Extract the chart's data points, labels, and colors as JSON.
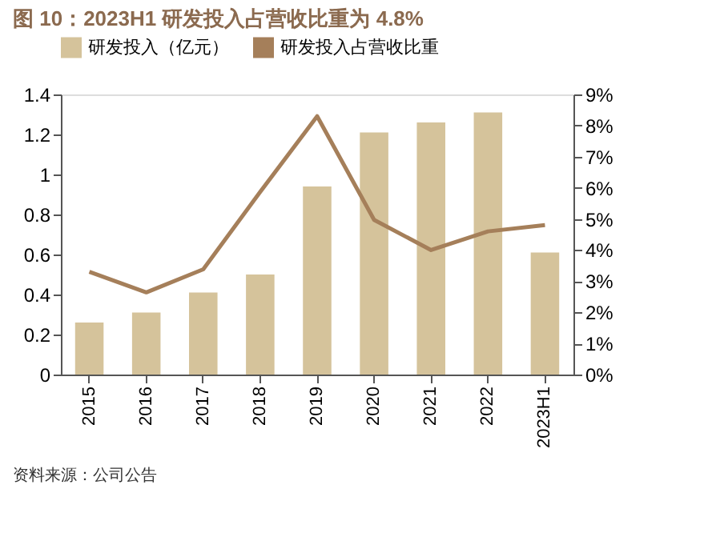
{
  "chart_data": {
    "type": "bar",
    "title": "图 10：2023H1 研发投入占营收比重为 4.8%",
    "categories": [
      "2015",
      "2016",
      "2017",
      "2018",
      "2019",
      "2020",
      "2021",
      "2022",
      "2023H1"
    ],
    "series": [
      {
        "name": "研发投入（亿元）",
        "color": "#d5c39b",
        "values": [
          0.26,
          0.31,
          0.41,
          0.5,
          0.94,
          1.21,
          1.26,
          1.31,
          0.61
        ]
      },
      {
        "name": "研发投入占营收比重",
        "type": "line",
        "axis": "y2",
        "color": "#a57f5a",
        "values": [
          3.3,
          2.64,
          3.38,
          5.87,
          8.3,
          4.97,
          4.0,
          4.6,
          4.8
        ]
      }
    ],
    "ylim": [
      0,
      1.4
    ],
    "yticks": [
      0,
      0.2,
      0.4,
      0.6,
      0.8,
      1,
      1.2,
      1.4
    ],
    "y2lim": [
      0,
      9
    ],
    "y2ticks": [
      {
        "value": 0,
        "label": "0%"
      },
      {
        "value": 1,
        "label": "1%"
      },
      {
        "value": 2,
        "label": "2%"
      },
      {
        "value": 3,
        "label": "3%"
      },
      {
        "value": 4,
        "label": "4%"
      },
      {
        "value": 5,
        "label": "5%"
      },
      {
        "value": 6,
        "label": "6%"
      },
      {
        "value": 7,
        "label": "7%"
      },
      {
        "value": 8,
        "label": "8%"
      },
      {
        "value": 9,
        "label": "9%"
      }
    ],
    "grid": false,
    "legend": "top",
    "marker": "none",
    "line_style": "solid",
    "annotations": [
      "资料来源：公司公告"
    ]
  }
}
